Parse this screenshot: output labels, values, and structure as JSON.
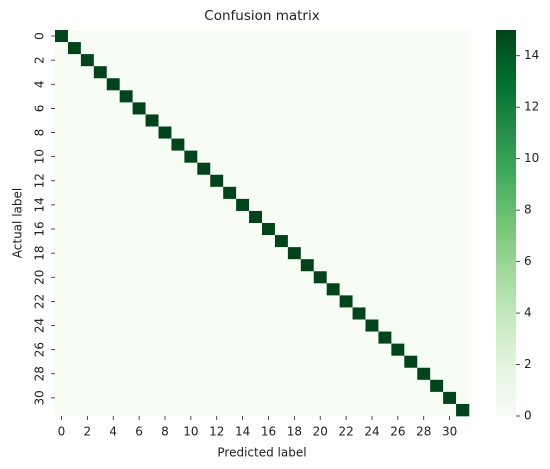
{
  "chart_data": {
    "type": "heatmap",
    "title": "Confusion matrix",
    "xlabel": "Predicted label",
    "ylabel": "Actual label",
    "x": [
      0,
      null,
      2,
      null,
      4,
      null,
      6,
      null,
      8,
      null,
      10,
      null,
      12,
      null,
      14,
      null,
      16,
      null,
      18,
      null,
      20,
      null,
      22,
      null,
      24,
      null,
      26,
      null,
      28,
      null,
      30,
      null
    ],
    "y": [
      0,
      null,
      2,
      null,
      4,
      null,
      6,
      null,
      8,
      null,
      10,
      null,
      12,
      null,
      14,
      null,
      16,
      null,
      18,
      null,
      20,
      null,
      22,
      null,
      24,
      null,
      26,
      null,
      28,
      null,
      30,
      null
    ],
    "values": [
      [
        15,
        0,
        0,
        0,
        0,
        0,
        0,
        0,
        0,
        0,
        0,
        0,
        0,
        0,
        0,
        0,
        0,
        0,
        0,
        0,
        0,
        0,
        0,
        0,
        0,
        0,
        0,
        0,
        0,
        0,
        0,
        0
      ],
      [
        0,
        15,
        0,
        0,
        0,
        0,
        0,
        0,
        0,
        0,
        0,
        0,
        0,
        0,
        0,
        0,
        0,
        0,
        0,
        0,
        0,
        0,
        0,
        0,
        0,
        0,
        0,
        0,
        0,
        0,
        0,
        0
      ],
      [
        0,
        0,
        15,
        0,
        0,
        0,
        0,
        0,
        0,
        0,
        0,
        0,
        0,
        0,
        0,
        0,
        0,
        0,
        0,
        0,
        0,
        0,
        0,
        0,
        0,
        0,
        0,
        0,
        0,
        0,
        0,
        0
      ],
      [
        0,
        0,
        0,
        15,
        0,
        0,
        0,
        0,
        0,
        0,
        0,
        0,
        0,
        0,
        0,
        0,
        0,
        0,
        0,
        0,
        0,
        0,
        0,
        0,
        0,
        0,
        0,
        0,
        0,
        0,
        0,
        0
      ],
      [
        0,
        0,
        0,
        0,
        15,
        0,
        0,
        0,
        0,
        0,
        0,
        0,
        0,
        0,
        0,
        0,
        0,
        0,
        0,
        0,
        0,
        0,
        0,
        0,
        0,
        0,
        0,
        0,
        0,
        0,
        0,
        0
      ],
      [
        0,
        0,
        0,
        0,
        0,
        15,
        0,
        0,
        0,
        0,
        0,
        0,
        0,
        0,
        0,
        0,
        0,
        0,
        0,
        0,
        0,
        0,
        0,
        0,
        0,
        0,
        0,
        0,
        0,
        0,
        0,
        0
      ],
      [
        0,
        0,
        0,
        0,
        0,
        0,
        15,
        0,
        0,
        0,
        0,
        0,
        0,
        0,
        0,
        0,
        0,
        0,
        0,
        0,
        0,
        0,
        0,
        0,
        0,
        0,
        0,
        0,
        0,
        0,
        0,
        0
      ],
      [
        0,
        0,
        0,
        0,
        0,
        0,
        0,
        15,
        0,
        0,
        0,
        0,
        0,
        0,
        0,
        0,
        0,
        0,
        0,
        0,
        0,
        0,
        0,
        0,
        0,
        0,
        0,
        0,
        0,
        0,
        0,
        0
      ],
      [
        0,
        0,
        0,
        0,
        0,
        0,
        0,
        0,
        15,
        0,
        0,
        0,
        0,
        0,
        0,
        0,
        0,
        0,
        0,
        0,
        0,
        0,
        0,
        0,
        0,
        0,
        0,
        0,
        0,
        0,
        0,
        0
      ],
      [
        0,
        0,
        0,
        0,
        0,
        0,
        0,
        0,
        0,
        15,
        0,
        0,
        0,
        0,
        0,
        0,
        0,
        0,
        0,
        0,
        0,
        0,
        0,
        0,
        0,
        0,
        0,
        0,
        0,
        0,
        0,
        0
      ],
      [
        0,
        0,
        0,
        0,
        0,
        0,
        0,
        0,
        0,
        0,
        15,
        0,
        0,
        0,
        0,
        0,
        0,
        0,
        0,
        0,
        0,
        0,
        0,
        0,
        0,
        0,
        0,
        0,
        0,
        0,
        0,
        0
      ],
      [
        0,
        0,
        0,
        0,
        0,
        0,
        0,
        0,
        0,
        0,
        0,
        15,
        0,
        0,
        0,
        0,
        0,
        0,
        0,
        0,
        0,
        0,
        0,
        0,
        0,
        0,
        0,
        0,
        0,
        0,
        0,
        0
      ],
      [
        0,
        0,
        0,
        0,
        0,
        0,
        0,
        0,
        0,
        0,
        0,
        0,
        15,
        0,
        0,
        0,
        0,
        0,
        0,
        0,
        0,
        0,
        0,
        0,
        0,
        0,
        0,
        0,
        0,
        0,
        0,
        0
      ],
      [
        0,
        0,
        0,
        0,
        0,
        0,
        0,
        0,
        0,
        0,
        0,
        0,
        0,
        15,
        0,
        0,
        0,
        0,
        0,
        0,
        0,
        0,
        0,
        0,
        0,
        0,
        0,
        0,
        0,
        0,
        0,
        0
      ],
      [
        0,
        0,
        0,
        0,
        0,
        0,
        0,
        0,
        0,
        0,
        0,
        0,
        0,
        0,
        15,
        0,
        0,
        0,
        0,
        0,
        0,
        0,
        0,
        0,
        0,
        0,
        0,
        0,
        0,
        0,
        0,
        0
      ],
      [
        0,
        0,
        0,
        0,
        0,
        0,
        0,
        0,
        0,
        0,
        0,
        0,
        0,
        0,
        0,
        15,
        0,
        0,
        0,
        0,
        0,
        0,
        0,
        0,
        0,
        0,
        0,
        0,
        0,
        0,
        0,
        0
      ],
      [
        0,
        0,
        0,
        0,
        0,
        0,
        0,
        0,
        0,
        0,
        0,
        0,
        0,
        0,
        0,
        0,
        15,
        0,
        0,
        0,
        0,
        0,
        0,
        0,
        0,
        0,
        0,
        0,
        0,
        0,
        0,
        0
      ],
      [
        0,
        0,
        0,
        0,
        0,
        0,
        0,
        0,
        0,
        0,
        0,
        0,
        0,
        0,
        0,
        0,
        0,
        15,
        0,
        0,
        0,
        0,
        0,
        0,
        0,
        0,
        0,
        0,
        0,
        0,
        0,
        0
      ],
      [
        0,
        0,
        0,
        0,
        0,
        0,
        0,
        0,
        0,
        0,
        0,
        0,
        0,
        0,
        0,
        0,
        0,
        0,
        15,
        0,
        0,
        0,
        0,
        0,
        0,
        0,
        0,
        0,
        0,
        0,
        0,
        0
      ],
      [
        0,
        0,
        0,
        0,
        0,
        0,
        0,
        0,
        0,
        0,
        0,
        0,
        0,
        0,
        0,
        0,
        0,
        0,
        0,
        15,
        0,
        0,
        0,
        0,
        0,
        0,
        0,
        0,
        0,
        0,
        0,
        0
      ],
      [
        0,
        0,
        0,
        0,
        0,
        0,
        0,
        0,
        0,
        0,
        0,
        0,
        0,
        0,
        0,
        0,
        0,
        0,
        0,
        0,
        15,
        0,
        0,
        0,
        0,
        0,
        0,
        0,
        0,
        0,
        0,
        0
      ],
      [
        0,
        0,
        0,
        0,
        0,
        0,
        0,
        0,
        0,
        0,
        0,
        0,
        0,
        0,
        0,
        0,
        0,
        0,
        0,
        0,
        0,
        15,
        0,
        0,
        0,
        0,
        0,
        0,
        0,
        0,
        0,
        0
      ],
      [
        0,
        0,
        0,
        0,
        0,
        0,
        0,
        0,
        0,
        0,
        0,
        0,
        0,
        0,
        0,
        0,
        0,
        0,
        0,
        0,
        0,
        0,
        15,
        0,
        0,
        0,
        0,
        0,
        0,
        0,
        0,
        0
      ],
      [
        0,
        0,
        0,
        0,
        0,
        0,
        0,
        0,
        0,
        0,
        0,
        0,
        0,
        0,
        0,
        0,
        0,
        0,
        0,
        0,
        0,
        0,
        0,
        15,
        0,
        0,
        0,
        0,
        0,
        0,
        0,
        0
      ],
      [
        0,
        0,
        0,
        0,
        0,
        0,
        0,
        0,
        0,
        0,
        0,
        0,
        0,
        0,
        0,
        0,
        0,
        0,
        0,
        0,
        0,
        0,
        0,
        0,
        15,
        0,
        0,
        0,
        0,
        0,
        0,
        0
      ],
      [
        0,
        0,
        0,
        0,
        0,
        0,
        0,
        0,
        0,
        0,
        0,
        0,
        0,
        0,
        0,
        0,
        0,
        0,
        0,
        0,
        0,
        0,
        0,
        0,
        0,
        15,
        0,
        0,
        0,
        0,
        0,
        0
      ],
      [
        0,
        0,
        0,
        0,
        0,
        0,
        0,
        0,
        0,
        0,
        0,
        0,
        0,
        0,
        0,
        0,
        0,
        0,
        0,
        0,
        0,
        0,
        0,
        0,
        0,
        0,
        15,
        0,
        0,
        0,
        0,
        0
      ],
      [
        0,
        0,
        0,
        0,
        0,
        0,
        0,
        0,
        0,
        0,
        0,
        0,
        0,
        0,
        0,
        0,
        0,
        0,
        0,
        0,
        0,
        0,
        0,
        0,
        0,
        0,
        0,
        15,
        0,
        0,
        0,
        0
      ],
      [
        0,
        0,
        0,
        0,
        0,
        0,
        0,
        0,
        0,
        0,
        0,
        0,
        0,
        0,
        0,
        0,
        0,
        0,
        0,
        0,
        0,
        0,
        0,
        0,
        0,
        0,
        0,
        0,
        15,
        0,
        0,
        0
      ],
      [
        0,
        0,
        0,
        0,
        0,
        0,
        0,
        0,
        0,
        0,
        0,
        0,
        0,
        0,
        0,
        0,
        0,
        0,
        0,
        0,
        0,
        0,
        0,
        0,
        0,
        0,
        0,
        0,
        0,
        15,
        0,
        0
      ],
      [
        0,
        0,
        0,
        0,
        0,
        0,
        0,
        0,
        0,
        0,
        0,
        0,
        0,
        0,
        0,
        0,
        0,
        0,
        0,
        0,
        0,
        0,
        0,
        0,
        0,
        0,
        0,
        0,
        0,
        0,
        15,
        0
      ],
      [
        0,
        0,
        0,
        0,
        0,
        0,
        0,
        0,
        0,
        0,
        0,
        0,
        0,
        0,
        0,
        0,
        0,
        0,
        0,
        0,
        0,
        0,
        0,
        0,
        0,
        0,
        0,
        0,
        0,
        0,
        0,
        15
      ]
    ],
    "colorscale": [
      "#f7fcf5",
      "#e5f5e0",
      "#c7e9c0",
      "#a1d99b",
      "#74c476",
      "#41ab5d",
      "#238b45",
      "#006d2c",
      "#00441b"
    ],
    "clim": [
      0,
      15
    ],
    "cticks": [
      0,
      2,
      4,
      6,
      8,
      10,
      12,
      14
    ]
  }
}
